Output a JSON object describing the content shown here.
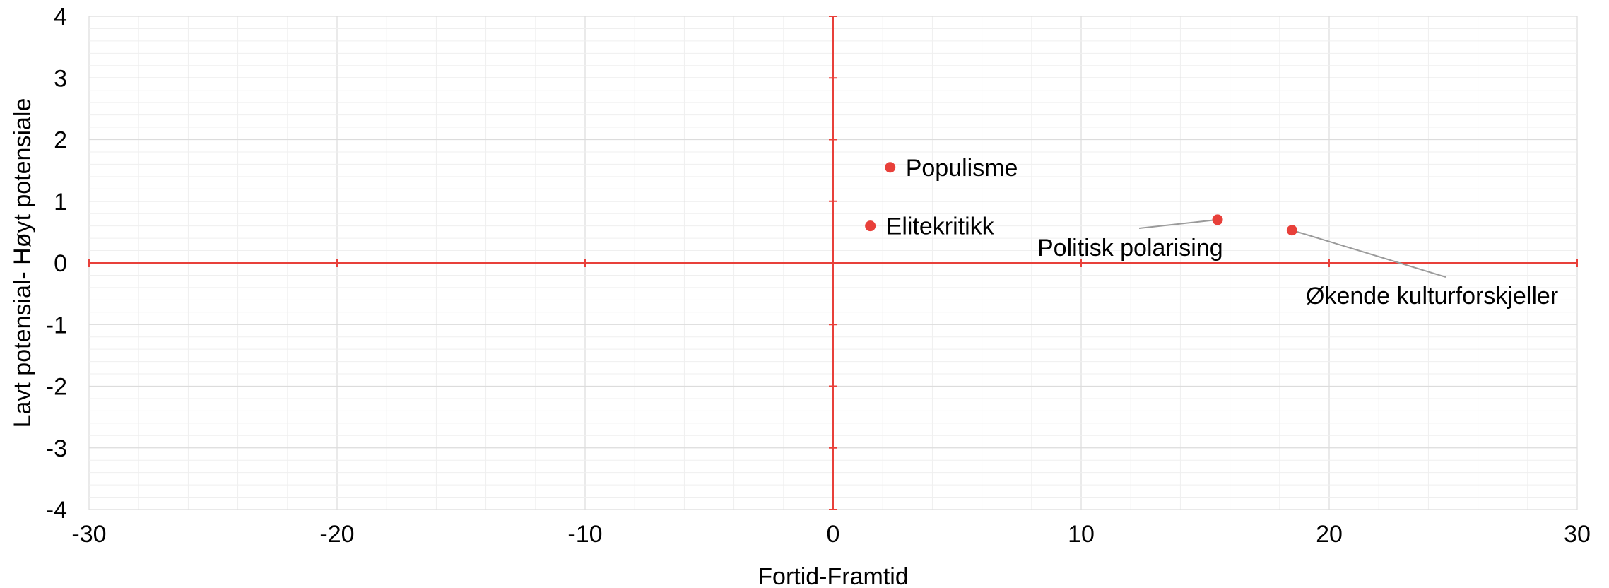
{
  "chart_data": {
    "type": "scatter",
    "xlabel": "Fortid-Framtid",
    "ylabel": "Lavt potensial- Høyt potensiale",
    "xlim": [
      -30,
      30
    ],
    "ylim": [
      -4,
      4
    ],
    "x_ticks": [
      -30,
      -20,
      -10,
      0,
      10,
      20,
      30
    ],
    "y_ticks": [
      -4,
      -3,
      -2,
      -1,
      0,
      1,
      2,
      3,
      4
    ],
    "grid": true,
    "legend": "none",
    "points": [
      {
        "label": "Populisme",
        "x": 2.3,
        "y": 1.55
      },
      {
        "label": "Elitekritikk",
        "x": 1.5,
        "y": 0.6
      },
      {
        "label": "Politisk polarising",
        "x": 15.5,
        "y": 0.7
      },
      {
        "label": "Økende kulturforskjeller",
        "x": 18.5,
        "y": 0.53
      }
    ],
    "colors": {
      "point": "#e8403a",
      "axis": "#e8403a",
      "grid": "#dcdcdc",
      "leader": "#9a9a9a"
    }
  }
}
